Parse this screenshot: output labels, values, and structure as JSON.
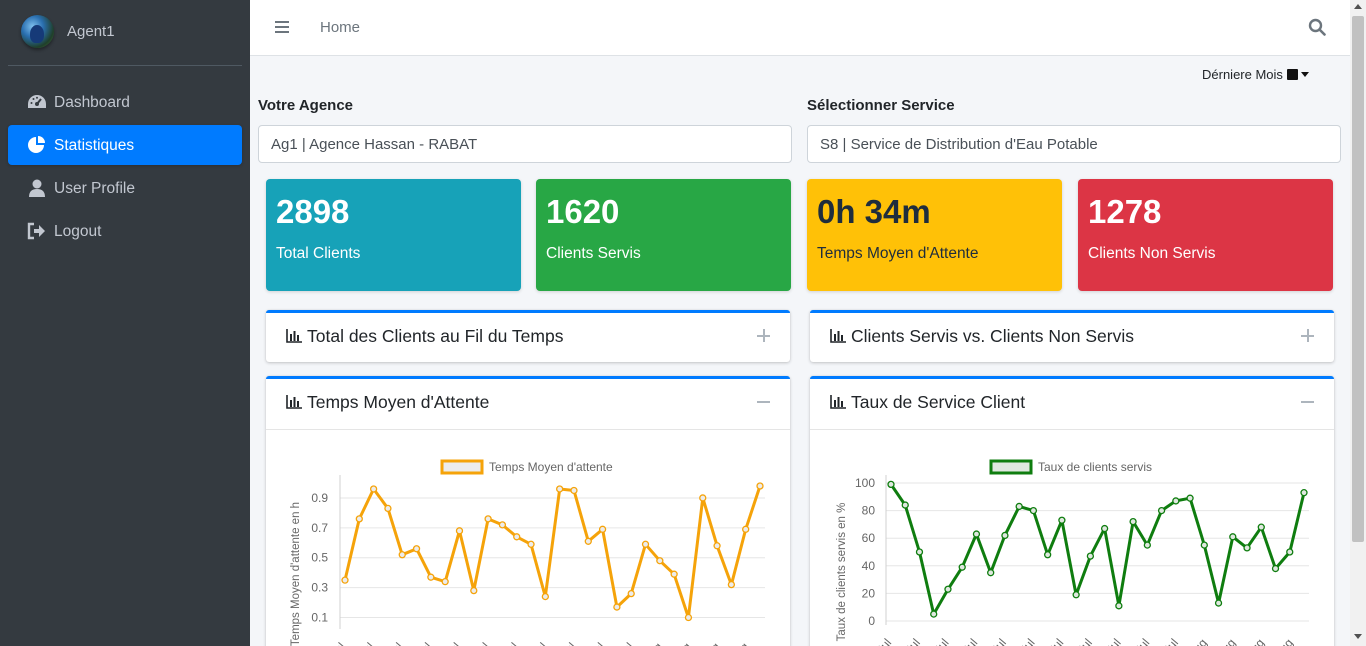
{
  "sidebar": {
    "user": {
      "name": "Agent1"
    },
    "items": [
      {
        "label": "Dashboard",
        "icon": "tachometer-icon",
        "active": false
      },
      {
        "label": "Statistiques",
        "icon": "pie-chart-icon",
        "active": true
      },
      {
        "label": "User Profile",
        "icon": "user-icon",
        "active": false
      },
      {
        "label": "Logout",
        "icon": "sign-out-icon",
        "active": false
      }
    ]
  },
  "topbar": {
    "home_label": "Home",
    "menu_icon": "bars-icon",
    "search_icon": "search-icon"
  },
  "filters": {
    "period_label": "Dérniere Mois",
    "agency_label": "Votre Agence",
    "agency_value": "Ag1 | Agence Hassan - RABAT",
    "service_label": "Sélectionner Service",
    "service_value": "S8 | Service de Distribution d'Eau Potable"
  },
  "stats": [
    {
      "value": "2898",
      "label": "Total Clients",
      "color": "#17a2b8"
    },
    {
      "value": "1620",
      "label": "Clients Servis",
      "color": "#28a745"
    },
    {
      "value": "0h 34m",
      "label": "Temps Moyen d'Attente",
      "color": "#ffc107"
    },
    {
      "value": "1278",
      "label": "Clients Non Servis",
      "color": "#dc3545"
    }
  ],
  "cards": {
    "total_clients": {
      "title": "Total des Clients au Fil du Temps",
      "tool": "plus-icon"
    },
    "servis_vs_non": {
      "title": "Clients Servis vs. Clients Non Servis",
      "tool": "plus-icon"
    },
    "temps_moyen": {
      "title": "Temps Moyen d'Attente",
      "tool": "minus-icon"
    },
    "taux_service": {
      "title": "Taux de Service Client",
      "tool": "minus-icon"
    }
  },
  "chart_data": [
    {
      "type": "line",
      "legend": "Temps Moyen d'attente",
      "ylabel": "Temps Moyen d'attente en h",
      "color": "#f5a30a",
      "fill": "#ececec",
      "ylim": [
        0.05,
        1.0
      ],
      "yticks": [
        "0.9",
        "0.7",
        "0.5",
        "0.3",
        "0.1"
      ],
      "ytick_values": [
        0.9,
        0.7,
        0.5,
        0.3,
        0.1
      ],
      "xtick_labels": [
        "Jul",
        "Jul",
        "Jul",
        "Jul",
        "Jul",
        "Jul",
        "Jul",
        "Jul",
        "Jul",
        "Jul",
        "Jul",
        "Aug",
        "Aug",
        "Aug",
        "Aug"
      ],
      "values": [
        0.35,
        0.76,
        0.96,
        0.83,
        0.52,
        0.56,
        0.37,
        0.34,
        0.68,
        0.28,
        0.76,
        0.72,
        0.64,
        0.59,
        0.24,
        0.96,
        0.95,
        0.61,
        0.69,
        0.17,
        0.26,
        0.59,
        0.48,
        0.39,
        0.1,
        0.9,
        0.58,
        0.32,
        0.69,
        0.98
      ]
    },
    {
      "type": "line",
      "legend": "Taux de clients servis",
      "ylabel": "Taux de clients servis en %",
      "color": "#0f7d0f",
      "fill": "#e0e8e0",
      "ylim": [
        0,
        100
      ],
      "yticks": [
        "100",
        "80",
        "60",
        "40",
        "20",
        "0"
      ],
      "ytick_values": [
        100,
        80,
        60,
        40,
        20,
        0
      ],
      "xtick_labels": [
        "Jul",
        "Jul",
        "Jul",
        "Jul",
        "Jul",
        "Jul",
        "Jul",
        "Jul",
        "Jul",
        "Jul",
        "Jul",
        "Aug",
        "Aug",
        "Aug",
        "Aug"
      ],
      "values": [
        99,
        84,
        50,
        5,
        23,
        39,
        63,
        35,
        62,
        83,
        80,
        48,
        73,
        19,
        47,
        67,
        11,
        72,
        55,
        80,
        87,
        89,
        55,
        13,
        61,
        53,
        68,
        38,
        50,
        93
      ]
    }
  ]
}
